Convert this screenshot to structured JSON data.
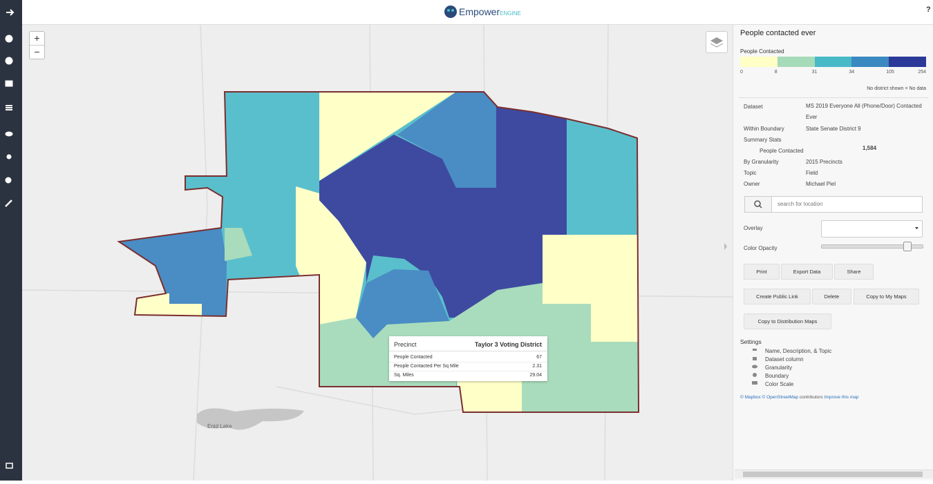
{
  "header": {
    "logo_main": "Empower",
    "logo_sub": "ENGINE",
    "help": "?"
  },
  "map": {
    "zoom_in": "+",
    "zoom_out": "−",
    "lake_label": "Enid Lake",
    "tooltip": {
      "title_label": "Precinct",
      "title_value": "Taylor 3 Voting District",
      "rows": [
        {
          "label": "People Contacted",
          "value": 67
        },
        {
          "label": "People Contacted Per Sq Mile",
          "value": 2.31
        },
        {
          "label": "Sq. Miles",
          "value": 29.04
        }
      ]
    }
  },
  "panel": {
    "title": "People contacted ever",
    "legend": {
      "title": "People Contacted",
      "colors": [
        "#ffffc6",
        "#a6dbb9",
        "#48b9c7",
        "#3a89c0",
        "#2b3a98"
      ],
      "breaks": [
        0,
        8,
        31,
        34,
        105,
        254
      ],
      "note": "No district shown = No data"
    },
    "details": [
      {
        "label": "Dataset",
        "value": "MS 2019 Everyone All (Phone/Door) Contacted Ever"
      },
      {
        "label": "Within Boundary",
        "value": "State Senate District 9"
      }
    ],
    "summary": {
      "label": "Summary Stats",
      "stat_label": "People Contacted",
      "stat_value": "1,584"
    },
    "details2": [
      {
        "label": "By Granularity",
        "value": "2015 Precincts"
      },
      {
        "label": "Topic",
        "value": "Field"
      },
      {
        "label": "Owner",
        "value": "Michael Piel"
      }
    ],
    "search_placeholder": "search for location",
    "overlay_label": "Overlay",
    "opacity_label": "Color Opacity",
    "buttons": [
      "Print",
      "Export Data",
      "Share",
      "Create Public Link",
      "Delete",
      "Copy to My Maps",
      "Copy to Distribution Maps"
    ],
    "settings": {
      "title": "Settings",
      "items": [
        "Name, Description, & Topic",
        "Dataset column",
        "Granularity",
        "Boundary",
        "Color Scale"
      ]
    },
    "attribution": [
      "© Mapbox © OpenStreetMap",
      "contributors",
      "Improve this map"
    ]
  }
}
